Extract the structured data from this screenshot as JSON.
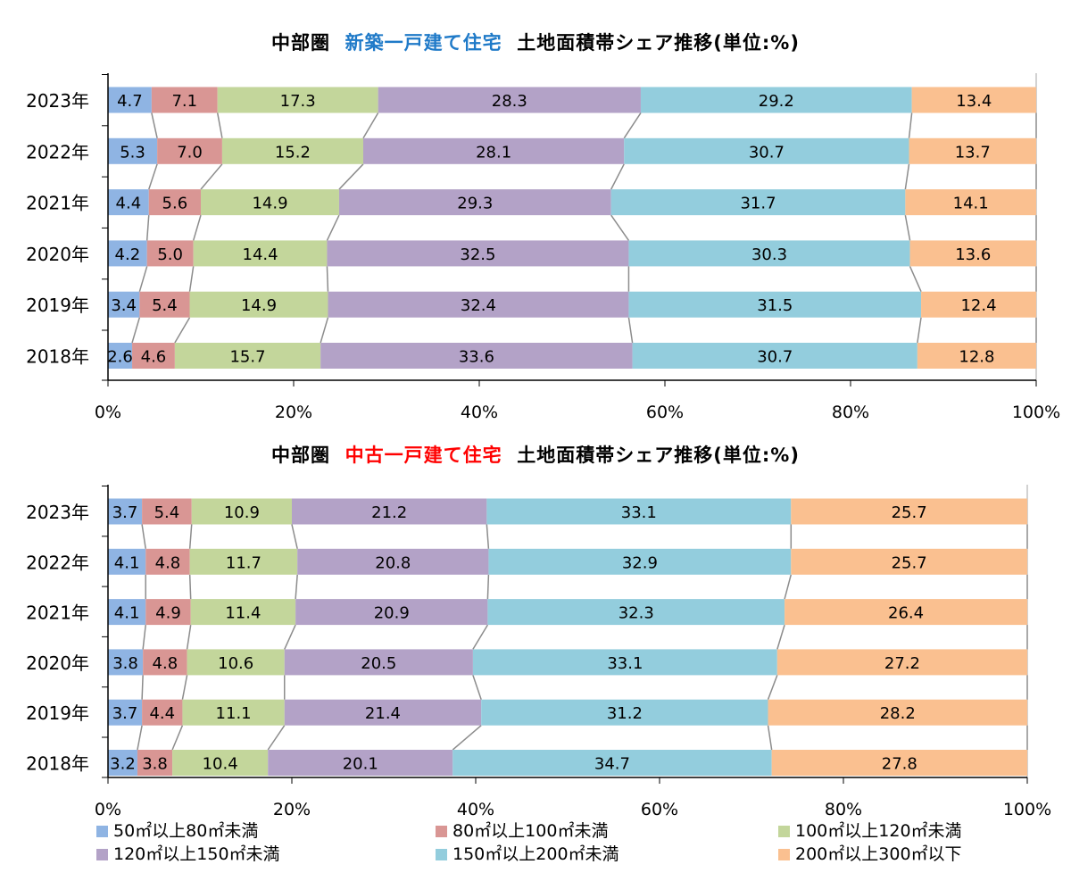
{
  "colors": [
    "#8fb4e3",
    "#d99694",
    "#c3d69b",
    "#b3a2c7",
    "#93cddd",
    "#fac090"
  ],
  "legend": [
    "50㎡以上80㎡未満",
    "80㎡以上100㎡未満",
    "100㎡以上120㎡未満",
    "120㎡以上150㎡未満",
    "150㎡以上200㎡未満",
    "200㎡以上300㎡以下"
  ],
  "chart_data": [
    {
      "type": "bar",
      "orientation": "horizontal",
      "stacked": "percent",
      "title_parts": [
        "中部圏",
        "新築一戸建て住宅",
        "土地面積帯シェア推移(単位:%)"
      ],
      "categories": [
        "2023年",
        "2022年",
        "2021年",
        "2020年",
        "2019年",
        "2018年"
      ],
      "xlim": [
        0,
        100
      ],
      "xticks": [
        "0%",
        "20%",
        "40%",
        "60%",
        "80%",
        "100%"
      ],
      "series": [
        {
          "name": "50㎡以上80㎡未満",
          "values": [
            4.7,
            5.3,
            4.4,
            4.2,
            3.4,
            2.6
          ]
        },
        {
          "name": "80㎡以上100㎡未満",
          "values": [
            7.1,
            7.0,
            5.6,
            5.0,
            5.4,
            4.6
          ]
        },
        {
          "name": "100㎡以上120㎡未満",
          "values": [
            17.3,
            15.2,
            14.9,
            14.4,
            14.9,
            15.7
          ]
        },
        {
          "name": "120㎡以上150㎡未満",
          "values": [
            28.3,
            28.1,
            29.3,
            32.5,
            32.4,
            33.6
          ]
        },
        {
          "name": "150㎡以上200㎡未満",
          "values": [
            29.2,
            30.7,
            31.7,
            30.3,
            31.5,
            30.7
          ]
        },
        {
          "name": "200㎡以上300㎡以下",
          "values": [
            13.4,
            13.7,
            14.1,
            13.6,
            12.4,
            12.8
          ]
        }
      ]
    },
    {
      "type": "bar",
      "orientation": "horizontal",
      "stacked": "percent",
      "title_parts": [
        "中部圏",
        "中古一戸建て住宅",
        "土地面積帯シェア推移(単位:%)"
      ],
      "categories": [
        "2023年",
        "2022年",
        "2021年",
        "2020年",
        "2019年",
        "2018年"
      ],
      "xlim": [
        0,
        100
      ],
      "xticks": [
        "0%",
        "20%",
        "40%",
        "60%",
        "80%",
        "100%"
      ],
      "series": [
        {
          "name": "50㎡以上80㎡未満",
          "values": [
            3.7,
            4.1,
            4.1,
            3.8,
            3.7,
            3.2
          ]
        },
        {
          "name": "80㎡以上100㎡未満",
          "values": [
            5.4,
            4.8,
            4.9,
            4.8,
            4.4,
            3.8
          ]
        },
        {
          "name": "100㎡以上120㎡未満",
          "values": [
            10.9,
            11.7,
            11.4,
            10.6,
            11.1,
            10.4
          ]
        },
        {
          "name": "120㎡以上150㎡未満",
          "values": [
            21.2,
            20.8,
            20.9,
            20.5,
            21.4,
            20.1
          ]
        },
        {
          "name": "150㎡以上200㎡未満",
          "values": [
            33.1,
            32.9,
            32.3,
            33.1,
            31.2,
            34.7
          ]
        },
        {
          "name": "200㎡以上300㎡以下",
          "values": [
            25.7,
            25.7,
            26.4,
            27.2,
            28.2,
            27.8
          ]
        }
      ]
    }
  ]
}
